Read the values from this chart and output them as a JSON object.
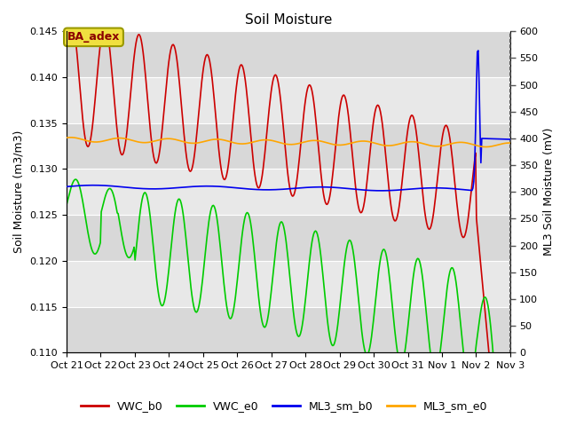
{
  "title": "Soil Moisture",
  "ylabel_left": "Soil Moisture (m3/m3)",
  "ylabel_right": "ML3 Soil Moisture (mV)",
  "ylim_left": [
    0.11,
    0.145
  ],
  "ylim_right": [
    0,
    600
  ],
  "background_color": "#ffffff",
  "plot_bg_color": "#e0e0e0",
  "annotation_text": "BA_adex",
  "series": {
    "VWC_b0": {
      "color": "#cc0000",
      "linewidth": 1.2
    },
    "VWC_e0": {
      "color": "#00cc00",
      "linewidth": 1.2
    },
    "ML3_sm_b0": {
      "color": "#0000ee",
      "linewidth": 1.2
    },
    "ML3_sm_e0": {
      "color": "#ffa500",
      "linewidth": 1.2
    }
  },
  "xtick_labels": [
    "Oct 21",
    "Oct 22",
    "Oct 23",
    "Oct 24",
    "Oct 25",
    "Oct 26",
    "Oct 27",
    "Oct 28",
    "Oct 29",
    "Oct 30",
    "Oct 31",
    "Nov 1",
    "Nov 2",
    "Nov 3"
  ],
  "yticks_left": [
    0.11,
    0.115,
    0.12,
    0.125,
    0.13,
    0.135,
    0.14,
    0.145
  ],
  "yticks_right": [
    0,
    50,
    100,
    150,
    200,
    250,
    300,
    350,
    400,
    450,
    500,
    550,
    600
  ],
  "stripe_colors": [
    "#d8d8d8",
    "#e8e8e8"
  ]
}
